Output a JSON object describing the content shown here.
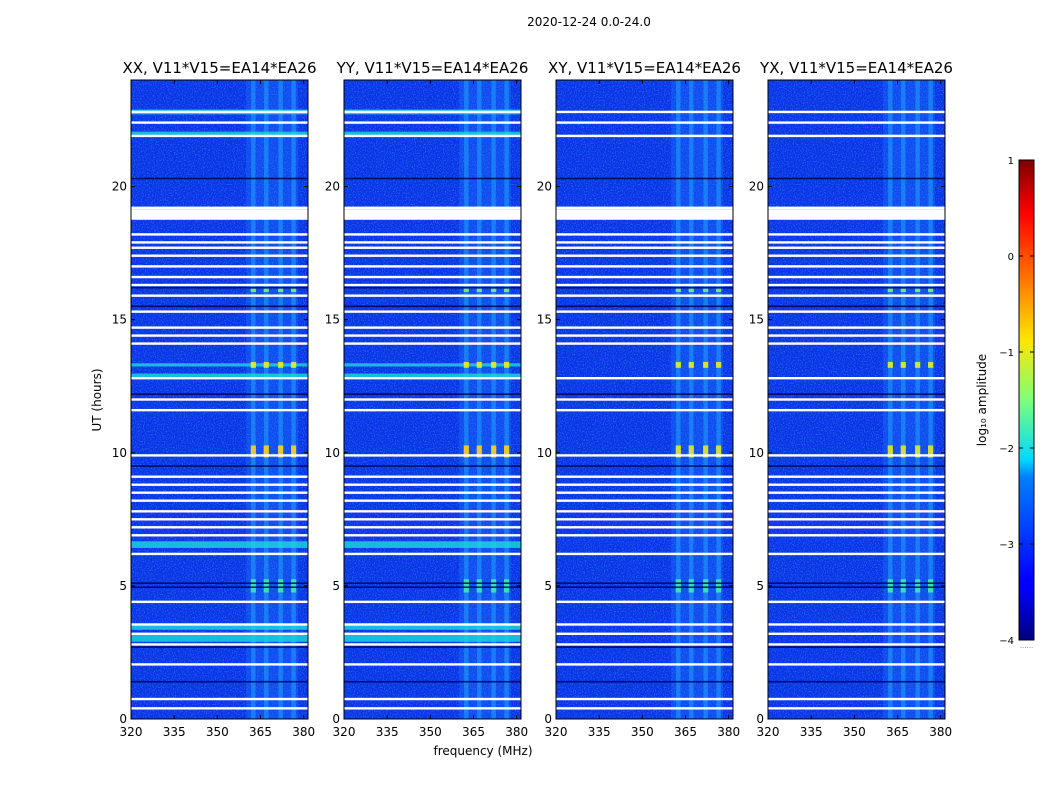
{
  "figure_title": "2020-12-24 0.0-24.0",
  "chart_data": {
    "type": "heatmap",
    "description": "Waterfall spectrograms of log10 amplitude vs frequency and UT",
    "xlabel": "frequency (MHz)",
    "ylabel": "UT (hours)",
    "xlim": [
      320,
      381.5
    ],
    "ylim": [
      0,
      24
    ],
    "xticks": [
      320,
      335,
      350,
      365,
      380
    ],
    "yticks": [
      0,
      5,
      10,
      15,
      20
    ],
    "panels": [
      {
        "title": "XX, V11*V15=EA14*EA26",
        "pol": "XX",
        "rfi_wide_band": true,
        "bright_burst": true
      },
      {
        "title": "YY, V11*V15=EA14*EA26",
        "pol": "YY",
        "rfi_wide_band": true,
        "bright_burst": true
      },
      {
        "title": "XY, V11*V15=EA14*EA26",
        "pol": "XY",
        "rfi_wide_band": false,
        "bright_burst": false
      },
      {
        "title": "YX, V11*V15=EA14*EA26",
        "pol": "YX",
        "rfi_wide_band": false,
        "bright_burst": false
      }
    ],
    "active_freq_range_mhz": [
      360,
      378
    ],
    "active_channel_centers_mhz": [
      362.5,
      367,
      372,
      376.5
    ],
    "bright_events_ut": [
      10.1,
      13.3,
      16.1,
      5.0
    ],
    "flagged_gaps_ut": [
      0.4,
      0.75,
      2.05,
      2.8,
      3.2,
      3.55,
      4.4,
      6.2,
      6.9,
      7.2,
      7.5,
      7.8,
      8.2,
      8.5,
      8.8,
      9.1,
      9.9,
      11.6,
      12.0,
      12.8,
      14.1,
      14.4,
      14.7,
      15.3,
      15.9,
      16.3,
      16.6,
      17.0,
      17.4,
      17.7,
      17.9,
      18.2,
      19.0,
      19.2,
      21.9,
      22.4,
      22.8
    ],
    "colorbar": {
      "label": "log₁₀ amplitude",
      "range": [
        -4,
        1
      ],
      "ticks": [
        "1",
        "0",
        "−1",
        "−2",
        "−3",
        "−4"
      ],
      "footnote": "......",
      "colormap": "jet"
    }
  }
}
